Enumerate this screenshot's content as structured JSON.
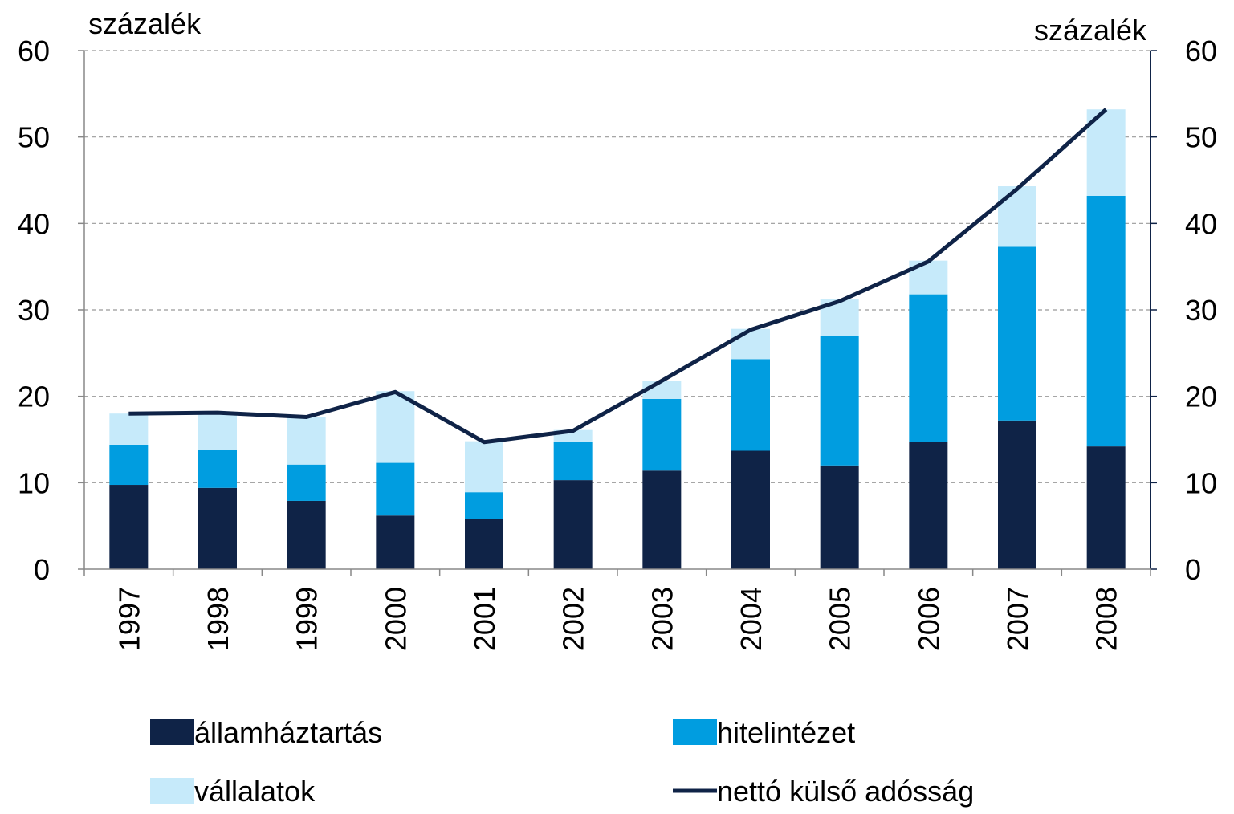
{
  "chart_data": {
    "type": "bar-line",
    "ylabel": "százalék",
    "y2label": "százalék",
    "categories": [
      "1997",
      "1998",
      "1999",
      "2000",
      "2001",
      "2002",
      "2003",
      "2004",
      "2005",
      "2006",
      "2007",
      "2008"
    ],
    "series": [
      {
        "name": "államháztartás",
        "color": "#0f2347",
        "type": "bar",
        "values": [
          9.75,
          9.4,
          7.9,
          6.2,
          5.8,
          10.3,
          11.4,
          13.7,
          12.0,
          14.7,
          17.2,
          14.2
        ]
      },
      {
        "name": "hitelintézet",
        "color": "#009de0",
        "type": "bar",
        "values": [
          4.65,
          4.4,
          4.2,
          6.1,
          3.1,
          4.4,
          8.3,
          10.6,
          15.0,
          17.1,
          20.1,
          29.0
        ]
      },
      {
        "name": "vállalatok",
        "color": "#c6eafa",
        "type": "bar",
        "values": [
          3.6,
          4.3,
          5.5,
          8.3,
          5.9,
          1.4,
          2.1,
          3.5,
          4.2,
          3.9,
          7.0,
          10.0
        ]
      },
      {
        "name": "nettó külső adósság",
        "color": "#0f2347",
        "type": "line",
        "axis": "y2",
        "values": [
          18.0,
          18.1,
          17.6,
          20.5,
          14.7,
          16.0,
          21.8,
          27.7,
          31.0,
          35.6,
          44.0,
          53.2
        ]
      }
    ],
    "ylim": [
      0,
      60
    ],
    "yticks": [
      0,
      10,
      20,
      30,
      40,
      50,
      60
    ],
    "y2lim": [
      0,
      60
    ],
    "y2ticks": [
      0,
      10,
      20,
      30,
      40,
      50,
      60
    ],
    "grid": true
  }
}
